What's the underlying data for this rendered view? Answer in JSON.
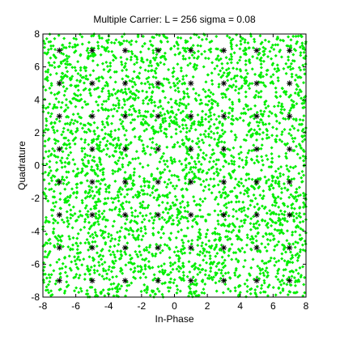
{
  "chart_data": {
    "type": "scatter",
    "title": "Multiple Carrier: L = 256 sigma = 0.08",
    "xlabel": "In-Phase",
    "ylabel": "Quadrature",
    "xlim": [
      -8,
      8
    ],
    "ylim": [
      -8,
      8
    ],
    "xticks": [
      "-8",
      "-6",
      "-4",
      "-2",
      "0",
      "2",
      "4",
      "6",
      "8"
    ],
    "yticks": [
      "-8",
      "-6",
      "-4",
      "-2",
      "0",
      "2",
      "4",
      "6",
      "8"
    ],
    "grid": false,
    "legend": "none",
    "series": [
      {
        "marker": "diamond",
        "color": "#00ee00",
        "points": 3400,
        "distribution": "dense uniform cloud filling the full axes range",
        "x_range": [
          -8,
          8
        ],
        "y_range": [
          -8,
          8
        ]
      },
      {
        "marker": "asterisk",
        "color": "#000000",
        "constellation": "64-QAM",
        "levels": [
          -7,
          -5,
          -3,
          -1,
          1,
          3,
          5,
          7
        ]
      }
    ]
  }
}
